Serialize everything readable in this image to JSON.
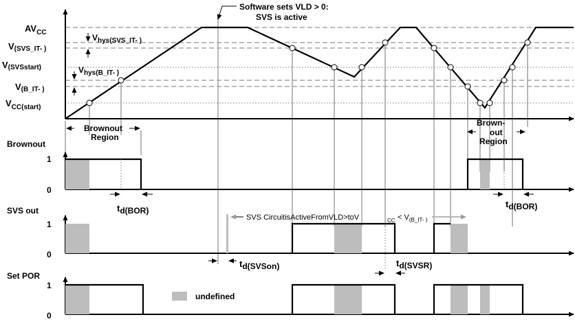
{
  "callout": {
    "line1": "Software sets VLD > 0:",
    "line2": "SVS is active"
  },
  "levels": {
    "avcc": {
      "main": "AV",
      "sub": "CC"
    },
    "svs_it": {
      "main": "V",
      "sub": "(SVS_IT- )"
    },
    "svs_start": {
      "main": "V",
      "sub": "(SVSstart)"
    },
    "b_it": {
      "main": "V",
      "sub": "(B_IT- )"
    },
    "vcc_start": {
      "main": "V",
      "sub": "CC(start)"
    }
  },
  "hysteresis": {
    "svs": {
      "main": "V",
      "sub": "hys(SVS_IT- )"
    },
    "b": {
      "main": "V",
      "sub": "hys(B_IT- )"
    }
  },
  "regions": {
    "brownout_left": {
      "line1": "Brownout",
      "line2": "Region"
    },
    "brownout_right": {
      "line1": "Brown-",
      "line2": "out",
      "line3": "Region"
    }
  },
  "signals": {
    "brownout": "Brownout",
    "svs_out": "SVS out",
    "set_por": "Set POR",
    "high": "1",
    "low": "0"
  },
  "timing": {
    "td_bor": {
      "main": "t",
      "sub": "d(BOR)"
    },
    "td_svson": {
      "main": "t",
      "sub": "d(SVSon)"
    },
    "td_svsr": {
      "main": "t",
      "sub": "d(SVSR)"
    }
  },
  "svs_annotation": {
    "text": "SVS CircuitisActiveFromVLD>toV",
    "cc": "CC",
    "lt": "< V",
    "bsub": "(B_IT- )"
  },
  "legend": {
    "undefined": "undefined"
  }
}
